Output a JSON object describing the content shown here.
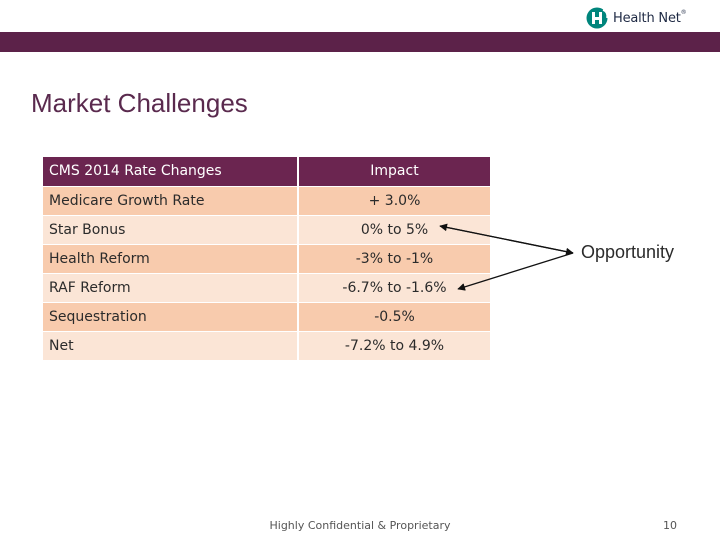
{
  "brand": {
    "logo_text": "Health Net",
    "trademark": "®",
    "color": "#00857c"
  },
  "theme": {
    "band_color": "#5c2249",
    "header_color": "#6b2550",
    "row_light": "#fbe5d6",
    "row_dark": "#f8cbad"
  },
  "slide": {
    "title": "Market Challenges",
    "annotation": "Opportunity",
    "footer": "Highly Confidential & Proprietary",
    "page_number": "10"
  },
  "table": {
    "headers": [
      "CMS 2014 Rate Changes",
      "Impact"
    ],
    "rows": [
      {
        "label": "Medicare Growth Rate",
        "impact": "+ 3.0%"
      },
      {
        "label": "Star Bonus",
        "impact": "0%  to  5%"
      },
      {
        "label": "Health Reform",
        "impact": "-3%  to  -1%"
      },
      {
        "label": "RAF Reform",
        "impact": "-6.7%  to  -1.6%"
      },
      {
        "label": "Sequestration",
        "impact": "-0.5%"
      },
      {
        "label": "Net",
        "impact": "-7.2%  to  4.9%"
      }
    ]
  }
}
